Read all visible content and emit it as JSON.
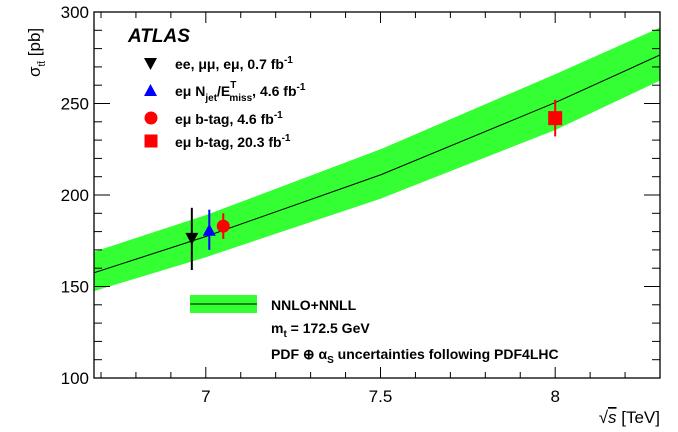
{
  "chart_data": {
    "type": "scatter",
    "title": "",
    "xlabel": {
      "prefix": "√",
      "var": "s",
      "unit": " [TeV]"
    },
    "ylabel": {
      "main": "σ",
      "sub": "tt̄",
      "unit": " [pb]"
    },
    "xlim": [
      6.68,
      8.3
    ],
    "ylim": [
      100,
      300
    ],
    "x_ticks": [
      7,
      7.5,
      8
    ],
    "x_tick_labels": [
      "7",
      "7.5",
      "8"
    ],
    "y_ticks": [
      100,
      150,
      200,
      250,
      300
    ],
    "y_tick_labels": [
      "100",
      "150",
      "200",
      "250",
      "300"
    ],
    "experiment_label": "ATLAS",
    "theory": {
      "name": "NNLO+NNLL",
      "color": "#33ff33",
      "line_color": "#000000",
      "x": [
        6.68,
        7.0,
        7.5,
        8.0,
        8.3
      ],
      "central": [
        157.5,
        177.3,
        211.0,
        250.5,
        276.5
      ],
      "band_low": [
        147.5,
        166.0,
        198.0,
        235.5,
        262.5
      ],
      "band_high": [
        169.0,
        189.0,
        225.0,
        266.0,
        291.5
      ]
    },
    "series": [
      {
        "name": {
          "text": "ee, μμ, eμ, 0.7 fb",
          "sup": "-1"
        },
        "marker": "triangle-down",
        "color": "#000000",
        "x": 6.96,
        "y": 176,
        "err": 17
      },
      {
        "name": {
          "text": "eμ N",
          "sub1": "jet",
          "mid": "/E",
          "sup2": "T",
          "sub2": "miss",
          "tail": ", 4.6 fb",
          "sup": "-1"
        },
        "marker": "triangle-up",
        "color": "#0000ff",
        "x": 7.01,
        "y": 181,
        "err": 11
      },
      {
        "name": {
          "text": "eμ b-tag, 4.6 fb",
          "sup": "-1"
        },
        "marker": "circle",
        "color": "#ff0000",
        "x": 7.05,
        "y": 183,
        "err": 7
      },
      {
        "name": {
          "text": "eμ b-tag, 20.3 fb",
          "sup": "-1"
        },
        "marker": "square",
        "color": "#ff0000",
        "x": 8.0,
        "y": 242,
        "err": 10
      }
    ],
    "notes": {
      "mass_prefix": "m",
      "mass_sub": "t",
      "mass_value": " = 172.5 GeV",
      "pdf_text_a": "PDF ⊕ α",
      "pdf_sub": "S",
      "pdf_text_b": " uncertainties following PDF4LHC"
    },
    "grid": false,
    "legend_position": "top-left"
  }
}
